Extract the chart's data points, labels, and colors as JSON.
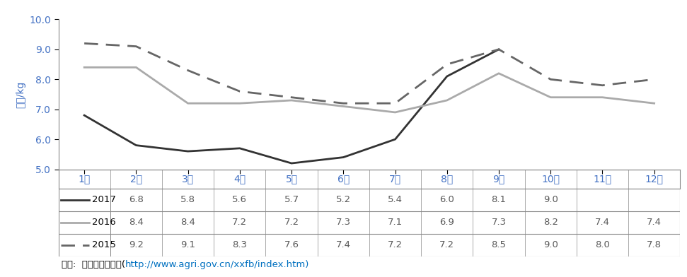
{
  "ylabel": "위안/kg",
  "months": [
    "1월",
    "2월",
    "3월",
    "4월",
    "5월",
    "6월",
    "7월",
    "8월",
    "9월",
    "10월",
    "11월",
    "12월"
  ],
  "series": {
    "2017": [
      6.8,
      5.8,
      5.6,
      5.7,
      5.2,
      5.4,
      6.0,
      8.1,
      9.0,
      null,
      null,
      null
    ],
    "2016": [
      8.4,
      8.4,
      7.2,
      7.2,
      7.3,
      7.1,
      6.9,
      7.3,
      8.2,
      7.4,
      7.4,
      7.2
    ],
    "2015": [
      9.2,
      9.1,
      8.3,
      7.6,
      7.4,
      7.2,
      7.2,
      8.5,
      9.0,
      8.0,
      7.8,
      8.0
    ]
  },
  "colors": {
    "2017": "#333333",
    "2016": "#aaaaaa",
    "2015": "#666666"
  },
  "linewidths": {
    "2017": 2.0,
    "2016": 2.0,
    "2015": 2.0
  },
  "dashes": {
    "2017": null,
    "2016": null,
    "2015": [
      7,
      4
    ]
  },
  "ylim": [
    5.0,
    10.0
  ],
  "yticks": [
    5.0,
    6.0,
    7.0,
    8.0,
    9.0,
    10.0
  ],
  "tick_color": "#4472c4",
  "source_prefix": "자료:  中國農業信息網(",
  "source_url": "http://www.agri.gov.cn/xxfb/index.htm",
  "source_suffix": ")",
  "source_prefix_color": "#000000",
  "source_url_color": "#0070c0",
  "data_text_color": "#595959",
  "border_color": "#888888",
  "background_color": "#ffffff",
  "fig_width": 9.71,
  "fig_height": 3.92,
  "dpi": 100
}
